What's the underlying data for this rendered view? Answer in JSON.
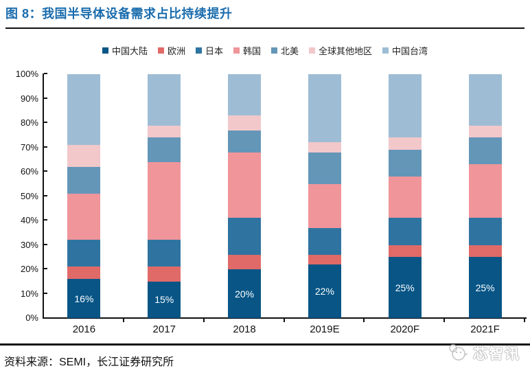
{
  "header": {
    "title": "图 8：我国半导体设备需求占比持续提升"
  },
  "source": {
    "label": "资料来源：SEMI，长江证券研究所"
  },
  "watermark": {
    "text": "芯智讯",
    "icon": "chick-logo-icon",
    "color": "#c6c6c6"
  },
  "chart_data": {
    "type": "bar",
    "stacked": true,
    "percent_stacked": true,
    "title": "我国半导体设备需求占比持续提升",
    "categories": [
      "2016",
      "2017",
      "2018",
      "2019E",
      "2020F",
      "2021F"
    ],
    "series": [
      {
        "name": "中国大陆",
        "color": "#085586",
        "values": [
          16,
          15,
          20,
          22,
          25,
          25
        ],
        "labels": [
          "16%",
          "15%",
          "20%",
          "22%",
          "25%",
          "25%"
        ]
      },
      {
        "name": "欧洲",
        "color": "#E06A68",
        "values": [
          5,
          6,
          6,
          4,
          5,
          5
        ]
      },
      {
        "name": "日本",
        "color": "#2F74A1",
        "values": [
          11,
          11,
          15,
          11,
          11,
          11
        ]
      },
      {
        "name": "韩国",
        "color": "#F0959A",
        "values": [
          19,
          32,
          27,
          18,
          17,
          22
        ]
      },
      {
        "name": "北美",
        "color": "#6496B8",
        "values": [
          11,
          10,
          9,
          13,
          11,
          11
        ]
      },
      {
        "name": "全球其他地区",
        "color": "#F2C8CA",
        "values": [
          9,
          5,
          6,
          4,
          5,
          5
        ]
      },
      {
        "name": "中国台湾",
        "color": "#9EBDD5",
        "values": [
          29,
          21,
          17,
          28,
          26,
          21
        ]
      }
    ],
    "ylabel_ticks": [
      "0%",
      "10%",
      "20%",
      "30%",
      "40%",
      "50%",
      "60%",
      "70%",
      "80%",
      "90%",
      "100%"
    ],
    "ylim": [
      0,
      100
    ],
    "xlabel": "",
    "ylabel": "",
    "legend_position": "top-center",
    "gridlines": false,
    "data_label_series": "中国大陆",
    "data_label_color": "#ffffff"
  }
}
